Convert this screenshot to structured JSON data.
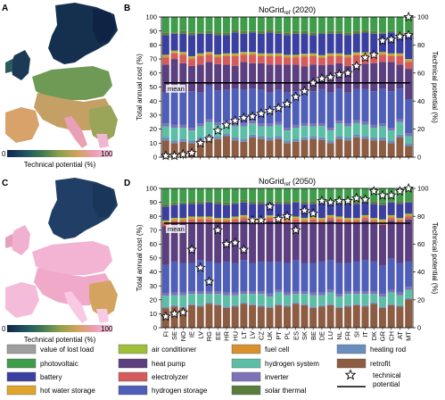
{
  "figure": {
    "panels": {
      "A": {
        "letter": "A"
      },
      "B": {
        "letter": "B",
        "title": "NoGrid",
        "title_sub": "ref",
        "title_suffix": " (2020)"
      },
      "C": {
        "letter": "C"
      },
      "D": {
        "letter": "D",
        "title": "NoGrid",
        "title_sub": "ref",
        "title_suffix": " (2050)"
      }
    },
    "colorbar": {
      "min_label": "0",
      "max_label": "100",
      "label": "Technical potential (%)",
      "colors": [
        "#11264b",
        "#1f5160",
        "#3f7a55",
        "#8ea04b",
        "#d2a35c",
        "#ec9db7",
        "#f7c9e3"
      ]
    },
    "mean_label": "mean",
    "legend": [
      {
        "label": "value of lost load",
        "color": "#9e9e9e"
      },
      {
        "label": "air conditioner",
        "color": "#9fbf3a"
      },
      {
        "label": "fuel cell",
        "color": "#d9902e"
      },
      {
        "label": "heating rod",
        "color": "#6a8fbf"
      },
      {
        "label": "photovoltaic",
        "color": "#3f9c4a"
      },
      {
        "label": "heat pump",
        "color": "#5b3f7e"
      },
      {
        "label": "hydrogen system",
        "color": "#5cbfa5"
      },
      {
        "label": "retrofit",
        "color": "#8c5c43"
      },
      {
        "label": "battery",
        "color": "#3a3fa0"
      },
      {
        "label": "electrolyzer",
        "color": "#d45c5c"
      },
      {
        "label": "inverter",
        "color": "#7d72b8"
      },
      {
        "label": "technical potential",
        "marker": "star"
      },
      {
        "label": "hot water storage",
        "color": "#e0a52e"
      },
      {
        "label": "hydrogen storage",
        "color": "#4f5fb8"
      },
      {
        "label": "solar thermal",
        "color": "#5a7d3e"
      }
    ]
  },
  "chart_data": [
    {
      "panel": "B",
      "type": "bar",
      "stacked": true,
      "title": "NoGrid_ref (2020)",
      "ylabel": "Total annual cost (%)",
      "y2label": "Technical potential (%)",
      "ylim": [
        0,
        100
      ],
      "yticks": [
        0,
        10,
        20,
        30,
        40,
        50,
        60,
        70,
        80,
        90,
        100
      ],
      "categories": [
        "FI",
        "SE",
        "NO",
        "EE",
        "IE",
        "LV",
        "LT",
        "RO",
        "BG",
        "HR",
        "HU",
        "CZ",
        "PL",
        "SK",
        "UK",
        "PT",
        "ES",
        "DE",
        "AT",
        "FR",
        "SI",
        "IT",
        "LU",
        "DK",
        "NL",
        "BE",
        "GR",
        "CH",
        "MT"
      ],
      "series": [
        {
          "name": "retrofit",
          "values": [
            12,
            10,
            11,
            10,
            12,
            14,
            13,
            15,
            12,
            11,
            14,
            13,
            12,
            13,
            10,
            11,
            12,
            13,
            12,
            10,
            13,
            12,
            14,
            13,
            12,
            12,
            10,
            14,
            8
          ]
        },
        {
          "name": "heating rod",
          "values": [
            2,
            2,
            2,
            2,
            2,
            2,
            2,
            2,
            2,
            2,
            2,
            2,
            2,
            2,
            2,
            2,
            2,
            2,
            2,
            2,
            2,
            2,
            2,
            2,
            2,
            2,
            2,
            2,
            2
          ]
        },
        {
          "name": "hydrogen system",
          "values": [
            8,
            9,
            8,
            7,
            8,
            9,
            8,
            7,
            8,
            9,
            8,
            7,
            8,
            8,
            7,
            8,
            8,
            7,
            8,
            7,
            9,
            8,
            8,
            8,
            7,
            8,
            7,
            9,
            5
          ]
        },
        {
          "name": "inverter",
          "values": [
            2,
            2,
            2,
            2,
            2,
            2,
            2,
            2,
            2,
            2,
            2,
            2,
            2,
            2,
            2,
            2,
            2,
            2,
            2,
            2,
            2,
            2,
            2,
            2,
            2,
            2,
            2,
            2,
            2
          ]
        },
        {
          "name": "hydrogen storage",
          "values": [
            22,
            25,
            24,
            26,
            22,
            24,
            23,
            22,
            25,
            24,
            23,
            24,
            22,
            23,
            25,
            24,
            22,
            23,
            24,
            25,
            23,
            22,
            22,
            23,
            24,
            25,
            26,
            22,
            24
          ]
        },
        {
          "name": "heat pump",
          "values": [
            20,
            22,
            20,
            18,
            20,
            17,
            19,
            18,
            16,
            20,
            18,
            19,
            20,
            18,
            20,
            19,
            18,
            19,
            17,
            20,
            18,
            19,
            17,
            18,
            20,
            19,
            21,
            17,
            22
          ]
        },
        {
          "name": "electrolyzer",
          "values": [
            5,
            4,
            6,
            5,
            6,
            5,
            5,
            6,
            7,
            5,
            6,
            5,
            6,
            6,
            5,
            5,
            7,
            6,
            5,
            6,
            5,
            6,
            7,
            6,
            5,
            5,
            4,
            6,
            5
          ]
        },
        {
          "name": "fuel cell",
          "values": [
            1,
            1,
            1,
            1,
            1,
            1,
            1,
            1,
            1,
            1,
            1,
            1,
            1,
            1,
            1,
            1,
            1,
            1,
            1,
            1,
            1,
            1,
            1,
            1,
            1,
            1,
            1,
            1,
            1
          ]
        },
        {
          "name": "air conditioner",
          "values": [
            1,
            1,
            1,
            1,
            1,
            1,
            1,
            1,
            1,
            1,
            1,
            1,
            1,
            1,
            1,
            1,
            1,
            1,
            1,
            1,
            1,
            1,
            1,
            1,
            1,
            1,
            1,
            1,
            1
          ]
        },
        {
          "name": "battery",
          "values": [
            14,
            12,
            13,
            15,
            14,
            13,
            14,
            13,
            15,
            13,
            14,
            14,
            15,
            14,
            14,
            15,
            14,
            13,
            15,
            14,
            14,
            14,
            13,
            14,
            14,
            13,
            15,
            13,
            18
          ]
        },
        {
          "name": "solar thermal",
          "values": [
            2,
            1,
            2,
            2,
            1,
            2,
            2,
            2,
            2,
            2,
            1,
            2,
            2,
            2,
            2,
            2,
            2,
            2,
            1,
            2,
            2,
            2,
            2,
            2,
            2,
            1,
            1,
            2,
            1
          ]
        },
        {
          "name": "photovoltaic",
          "values": [
            11,
            11,
            10,
            11,
            11,
            10,
            11,
            11,
            9,
            10,
            10,
            10,
            9,
            10,
            11,
            10,
            10,
            11,
            11,
            10,
            10,
            11,
            10,
            9,
            10,
            11,
            10,
            11,
            11
          ]
        }
      ],
      "technical_potential": [
        1,
        1,
        2,
        3,
        10,
        13,
        19,
        23,
        26,
        28,
        29,
        31,
        33,
        35,
        38,
        43,
        47,
        53,
        56,
        57,
        59,
        60,
        65,
        71,
        73,
        83,
        84,
        86,
        87
      ],
      "extra_star": {
        "category": "MT",
        "value": 100
      },
      "mean": 53
    },
    {
      "panel": "D",
      "type": "bar",
      "stacked": true,
      "title": "NoGrid_ref (2050)",
      "ylabel": "Total annual cost (%)",
      "y2label": "Technical potential (%)",
      "ylim": [
        0,
        100
      ],
      "yticks": [
        0,
        10,
        20,
        30,
        40,
        50,
        60,
        70,
        80,
        90,
        100
      ],
      "categories": [
        "FI",
        "SE",
        "NO",
        "IE",
        "LV",
        "RG",
        "EE",
        "HR",
        "HU",
        "LT",
        "LV",
        "CZ",
        "UK",
        "PT",
        "PL",
        "ES",
        "SK",
        "BE",
        "DE",
        "LU",
        "NL",
        "FR",
        "SI",
        "IT",
        "DK",
        "GR",
        "CH",
        "AT",
        "MT"
      ],
      "series": [
        {
          "name": "retrofit",
          "values": [
            14,
            15,
            14,
            16,
            15,
            17,
            16,
            14,
            15,
            17,
            16,
            15,
            14,
            16,
            15,
            17,
            16,
            14,
            15,
            16,
            14,
            15,
            16,
            15,
            17,
            14,
            16,
            15,
            20
          ]
        },
        {
          "name": "heating rod",
          "values": [
            1,
            1,
            1,
            1,
            1,
            1,
            1,
            1,
            1,
            1,
            1,
            1,
            1,
            1,
            1,
            1,
            1,
            1,
            1,
            1,
            1,
            1,
            1,
            1,
            1,
            1,
            1,
            1,
            1
          ]
        },
        {
          "name": "hydrogen system",
          "values": [
            8,
            7,
            8,
            7,
            8,
            6,
            7,
            8,
            7,
            6,
            7,
            8,
            7,
            8,
            7,
            6,
            7,
            8,
            7,
            8,
            7,
            8,
            7,
            8,
            6,
            7,
            8,
            7,
            6
          ]
        },
        {
          "name": "inverter",
          "values": [
            2,
            2,
            2,
            2,
            2,
            2,
            2,
            2,
            2,
            2,
            2,
            2,
            2,
            2,
            2,
            2,
            2,
            2,
            2,
            2,
            2,
            2,
            2,
            2,
            2,
            2,
            2,
            2,
            2
          ]
        },
        {
          "name": "hydrogen storage",
          "values": [
            20,
            22,
            21,
            20,
            22,
            21,
            20,
            22,
            21,
            22,
            20,
            21,
            22,
            20,
            21,
            22,
            20,
            21,
            22,
            21,
            22,
            20,
            21,
            22,
            21,
            20,
            22,
            21,
            18
          ]
        },
        {
          "name": "heat pump",
          "values": [
            28,
            27,
            28,
            29,
            27,
            28,
            28,
            27,
            29,
            28,
            28,
            27,
            29,
            28,
            28,
            27,
            28,
            29,
            27,
            28,
            29,
            28,
            27,
            28,
            27,
            29,
            27,
            28,
            30
          ]
        },
        {
          "name": "electrolyzer",
          "values": [
            2,
            2,
            2,
            2,
            2,
            2,
            2,
            2,
            2,
            2,
            2,
            2,
            2,
            2,
            2,
            2,
            2,
            2,
            2,
            2,
            2,
            2,
            2,
            2,
            2,
            2,
            2,
            2,
            2
          ]
        },
        {
          "name": "fuel cell",
          "values": [
            1,
            1,
            1,
            1,
            1,
            1,
            1,
            1,
            1,
            1,
            1,
            1,
            1,
            1,
            1,
            1,
            1,
            1,
            1,
            1,
            1,
            1,
            1,
            1,
            1,
            1,
            1,
            1,
            1
          ]
        },
        {
          "name": "air conditioner",
          "values": [
            1,
            1,
            1,
            1,
            1,
            1,
            1,
            1,
            1,
            1,
            1,
            1,
            1,
            1,
            1,
            1,
            1,
            1,
            1,
            1,
            1,
            1,
            1,
            1,
            1,
            1,
            1,
            1,
            1
          ]
        },
        {
          "name": "battery",
          "values": [
            10,
            9,
            10,
            9,
            9,
            10,
            10,
            9,
            9,
            9,
            10,
            10,
            9,
            9,
            10,
            10,
            10,
            9,
            10,
            9,
            9,
            10,
            10,
            9,
            10,
            10,
            9,
            10,
            8
          ]
        },
        {
          "name": "solar thermal",
          "values": [
            2,
            2,
            1,
            2,
            2,
            1,
            2,
            2,
            1,
            2,
            2,
            2,
            1,
            2,
            2,
            1,
            2,
            2,
            2,
            1,
            2,
            2,
            2,
            1,
            2,
            2,
            1,
            2,
            1
          ]
        },
        {
          "name": "photovoltaic",
          "values": [
            11,
            10,
            10,
            9,
            9,
            9,
            9,
            10,
            10,
            8,
            9,
            9,
            9,
            9,
            9,
            9,
            9,
            9,
            9,
            9,
            9,
            9,
            9,
            9,
            9,
            10,
            9,
            9,
            9
          ]
        }
      ],
      "technical_potential": [
        8,
        10,
        11,
        56,
        43,
        33,
        70,
        60,
        61,
        56,
        77,
        77,
        87,
        78,
        80,
        70,
        84,
        82,
        91,
        90,
        91,
        91,
        93,
        92,
        98,
        95,
        95,
        98,
        100
      ],
      "mean": 75
    }
  ]
}
